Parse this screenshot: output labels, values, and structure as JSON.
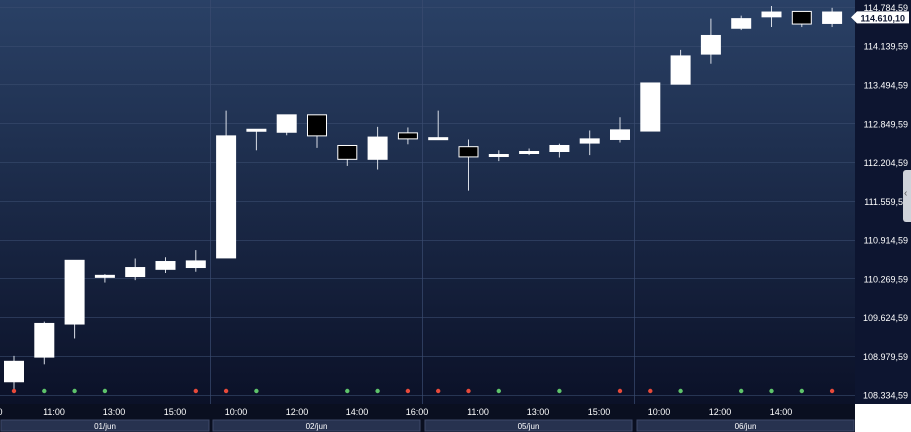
{
  "chart_data": {
    "type": "candlestick",
    "ylim": [
      108180,
      114900
    ],
    "y_ticks": [
      "114.784,59",
      "114.139,59",
      "113.494,59",
      "112.849,59",
      "112.204,59",
      "111.559,59",
      "110.914,59",
      "110.269,59",
      "109.624,59",
      "108.979,59",
      "108.334,59"
    ],
    "y_tick_values": [
      114784.59,
      114139.59,
      113494.59,
      112849.59,
      112204.59,
      111559.59,
      110914.59,
      110269.59,
      109624.59,
      108979.59,
      108334.59
    ],
    "current_price_label": "114.610,10",
    "current_price": 114610.1,
    "x_tick_labels": [
      "0",
      "11:00",
      "13:00",
      "15:00",
      "10:00",
      "12:00",
      "14:00",
      "16:00",
      "11:00",
      "13:00",
      "15:00",
      "10:00",
      "12:00",
      "14:00"
    ],
    "day_labels": [
      "01/jun",
      "02/jun",
      "05/jun",
      "06/jun"
    ],
    "candles": [
      {
        "o": 108550,
        "h": 108980,
        "l": 108400,
        "c": 108890
      },
      {
        "o": 108960,
        "h": 109550,
        "l": 108840,
        "c": 109520
      },
      {
        "o": 109510,
        "h": 110510,
        "l": 109270,
        "c": 110570
      },
      {
        "o": 110300,
        "h": 110340,
        "l": 110200,
        "c": 110320
      },
      {
        "o": 110300,
        "h": 110600,
        "l": 110240,
        "c": 110450
      },
      {
        "o": 110420,
        "h": 110620,
        "l": 110360,
        "c": 110550
      },
      {
        "o": 110450,
        "h": 110740,
        "l": 110380,
        "c": 110560
      },
      {
        "o": 110610,
        "h": 113060,
        "l": 110610,
        "c": 112640
      },
      {
        "o": 112720,
        "h": 112720,
        "l": 112400,
        "c": 112750
      },
      {
        "o": 112700,
        "h": 112970,
        "l": 112650,
        "c": 112990
      },
      {
        "o": 112990,
        "h": 112990,
        "l": 112440,
        "c": 112640
      },
      {
        "o": 112480,
        "h": 112480,
        "l": 112140,
        "c": 112250
      },
      {
        "o": 112250,
        "h": 112790,
        "l": 112080,
        "c": 112620
      },
      {
        "o": 112690,
        "h": 112780,
        "l": 112500,
        "c": 112590
      },
      {
        "o": 112610,
        "h": 113060,
        "l": 112590,
        "c": 112610
      },
      {
        "o": 112460,
        "h": 112580,
        "l": 111730,
        "c": 112290
      },
      {
        "o": 112330,
        "h": 112400,
        "l": 112220,
        "c": 112330
      },
      {
        "o": 112360,
        "h": 112430,
        "l": 112320,
        "c": 112380
      },
      {
        "o": 112380,
        "h": 112510,
        "l": 112280,
        "c": 112480
      },
      {
        "o": 112520,
        "h": 112730,
        "l": 112320,
        "c": 112590
      },
      {
        "o": 112580,
        "h": 112950,
        "l": 112530,
        "c": 112740
      },
      {
        "o": 112720,
        "h": 113520,
        "l": 112720,
        "c": 113520
      },
      {
        "o": 113500,
        "h": 114070,
        "l": 113500,
        "c": 113970
      },
      {
        "o": 114000,
        "h": 114590,
        "l": 113840,
        "c": 114310
      },
      {
        "o": 114430,
        "h": 114640,
        "l": 114400,
        "c": 114590
      },
      {
        "o": 114620,
        "h": 114800,
        "l": 114450,
        "c": 114700
      },
      {
        "o": 114710,
        "h": 114700,
        "l": 114450,
        "c": 114500
      },
      {
        "o": 114510,
        "h": 114770,
        "l": 114450,
        "c": 114700
      }
    ],
    "signal_dots": [
      {
        "candle": 0,
        "color": "#e84a3a"
      },
      {
        "candle": 1,
        "color": "#5ec46b"
      },
      {
        "candle": 2,
        "color": "#5ec46b"
      },
      {
        "candle": 3,
        "color": "#5ec46b"
      },
      {
        "candle": 6,
        "color": "#e84a3a"
      },
      {
        "candle": 7,
        "color": "#e84a3a"
      },
      {
        "candle": 8,
        "color": "#5ec46b"
      },
      {
        "candle": 11,
        "color": "#5ec46b"
      },
      {
        "candle": 12,
        "color": "#5ec46b"
      },
      {
        "candle": 13,
        "color": "#e84a3a"
      },
      {
        "candle": 14,
        "color": "#e84a3a"
      },
      {
        "candle": 15,
        "color": "#e84a3a"
      },
      {
        "candle": 16,
        "color": "#5ec46b"
      },
      {
        "candle": 18,
        "color": "#5ec46b"
      },
      {
        "candle": 20,
        "color": "#e84a3a"
      },
      {
        "candle": 21,
        "color": "#e84a3a"
      },
      {
        "candle": 22,
        "color": "#5ec46b"
      },
      {
        "candle": 24,
        "color": "#5ec46b"
      },
      {
        "candle": 25,
        "color": "#5ec46b"
      },
      {
        "candle": 26,
        "color": "#5ec46b"
      },
      {
        "candle": 27,
        "color": "#e84a3a"
      }
    ],
    "colors": {
      "bg_top": "#2a4166",
      "bg_bottom": "#0b1128",
      "grid": "#3a4c70",
      "up": "#ffffff",
      "down": "#000000",
      "wick": "#d8dde6",
      "axis_text": "#ffffff",
      "day_bar": "#27324f"
    }
  }
}
